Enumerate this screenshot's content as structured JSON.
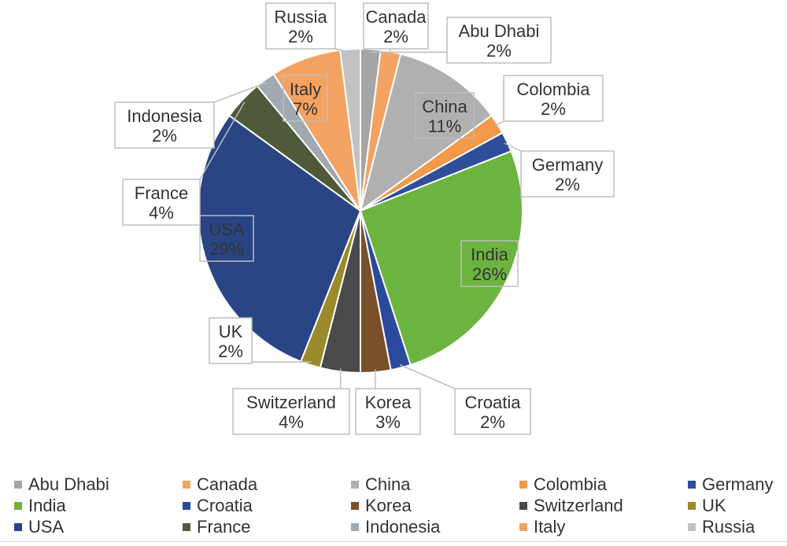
{
  "chart_data": {
    "type": "pie",
    "title": "",
    "slices": [
      {
        "label": "Abu Dhabi",
        "value": 2,
        "display": "2%",
        "color": "#a5a5a5"
      },
      {
        "label": "Canada",
        "value": 2,
        "display": "2%",
        "color": "#f4a261"
      },
      {
        "label": "China",
        "value": 11,
        "display": "11%",
        "color": "#b0b0b0"
      },
      {
        "label": "Colombia",
        "value": 2,
        "display": "2%",
        "color": "#f29a4a"
      },
      {
        "label": "Germany",
        "value": 2,
        "display": "2%",
        "color": "#2f4f9b"
      },
      {
        "label": "India",
        "value": 26,
        "display": "26%",
        "color": "#6db33f"
      },
      {
        "label": "Croatia",
        "value": 2,
        "display": "2%",
        "color": "#2a4a9b"
      },
      {
        "label": "Korea",
        "value": 3,
        "display": "3%",
        "color": "#7a4f2a"
      },
      {
        "label": "Switzerland",
        "value": 4,
        "display": "4%",
        "color": "#4a4a4a"
      },
      {
        "label": "UK",
        "value": 2,
        "display": "2%",
        "color": "#9a8a2a"
      },
      {
        "label": "USA",
        "value": 29,
        "display": "29%",
        "color": "#2a4585"
      },
      {
        "label": "France",
        "value": 4,
        "display": "4%",
        "color": "#4e5a3a"
      },
      {
        "label": "Indonesia",
        "value": 2,
        "display": "2%",
        "color": "#a0a8b0"
      },
      {
        "label": "Italy",
        "value": 7,
        "display": "7%",
        "color": "#f4a261"
      },
      {
        "label": "Russia",
        "value": 2,
        "display": "2%",
        "color": "#c2c2c2"
      }
    ],
    "legend": {
      "position": "bottom",
      "items": [
        "Abu Dhabi",
        "Canada",
        "China",
        "Colombia",
        "Germany",
        "India",
        "Croatia",
        "Korea",
        "Switzerland",
        "UK",
        "USA",
        "France",
        "Indonesia",
        "Italy",
        "Russia"
      ]
    }
  }
}
